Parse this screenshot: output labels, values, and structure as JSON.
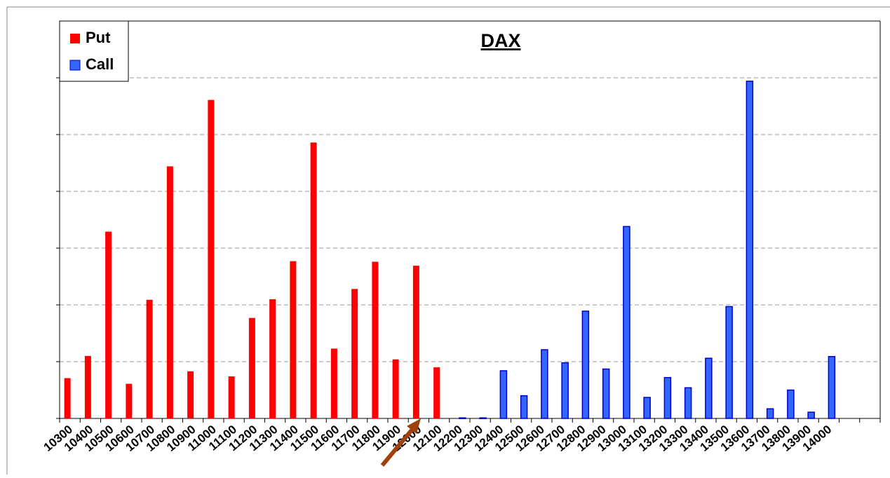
{
  "chart_data": {
    "type": "bar",
    "title": "DAX",
    "categories": [
      "10300",
      "10400",
      "10500",
      "10600",
      "10700",
      "10800",
      "10900",
      "11000",
      "11100",
      "11200",
      "11300",
      "11400",
      "11500",
      "11600",
      "11700",
      "11800",
      "11900",
      "12000",
      "12100",
      "12200",
      "12300",
      "12400",
      "12500",
      "12600",
      "12700",
      "12800",
      "12900",
      "13000",
      "13100",
      "13200",
      "13300",
      "13400",
      "13500",
      "13600",
      "13700",
      "13800",
      "13900",
      "14000",
      null,
      null
    ],
    "series": [
      {
        "name": "Put",
        "color": "#ff0000",
        "values": [
          0.71,
          1.1,
          3.29,
          0.61,
          2.09,
          4.44,
          0.83,
          5.61,
          0.74,
          1.77,
          2.1,
          2.77,
          4.86,
          1.23,
          2.28,
          2.76,
          1.04,
          2.69,
          0.9,
          null,
          null,
          null,
          null,
          null,
          null,
          null,
          null,
          null,
          null,
          null,
          null,
          null,
          null,
          null,
          null,
          null,
          null,
          null,
          null,
          null
        ]
      },
      {
        "name": "Call",
        "color": "#3366ff",
        "values": [
          null,
          null,
          null,
          null,
          null,
          null,
          null,
          null,
          null,
          null,
          null,
          null,
          null,
          null,
          null,
          null,
          null,
          null,
          null,
          0.01,
          0.01,
          0.84,
          0.4,
          1.21,
          0.98,
          1.89,
          0.87,
          3.38,
          0.37,
          0.72,
          0.54,
          1.06,
          1.97,
          5.94,
          0.17,
          0.5,
          0.11,
          1.09,
          null,
          null
        ]
      }
    ],
    "ylim": [
      0,
      7
    ],
    "yticks": [
      0,
      1,
      2,
      3,
      4,
      5,
      6
    ],
    "grid": true,
    "legend": "top-left"
  }
}
